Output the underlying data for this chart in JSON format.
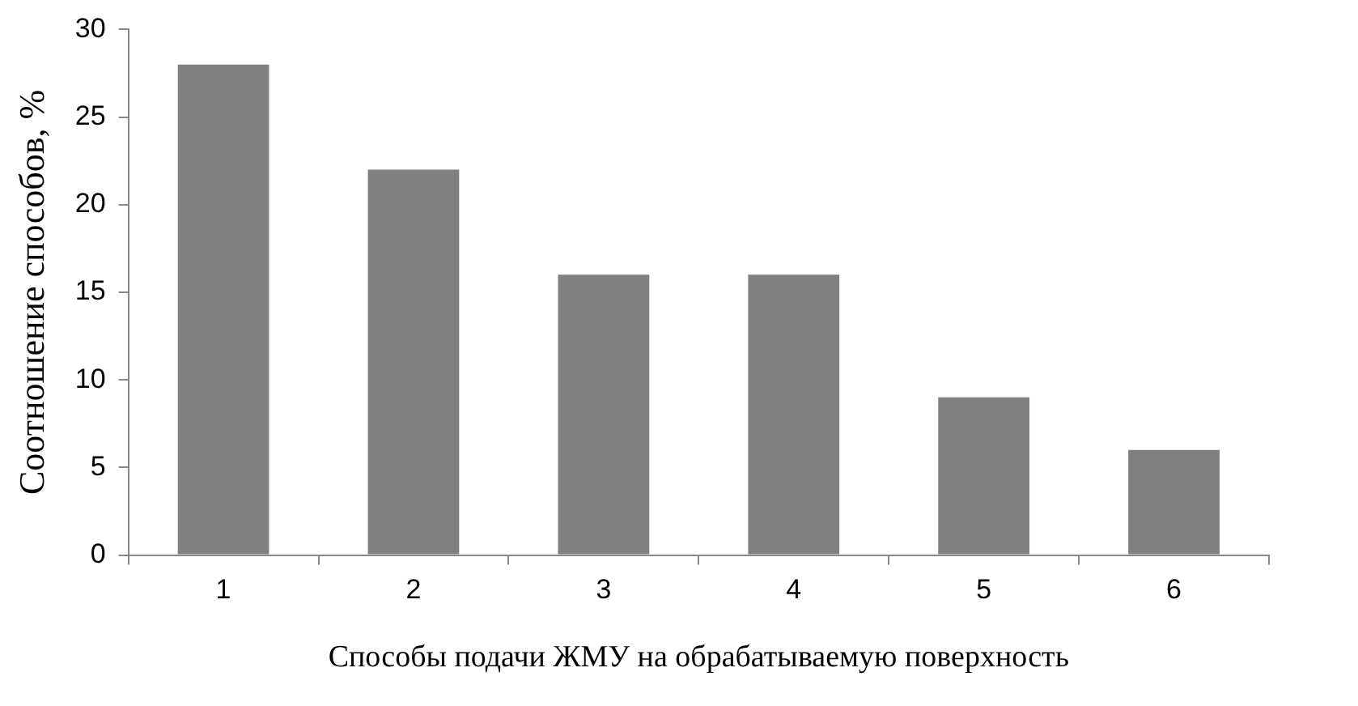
{
  "chart_data": {
    "type": "bar",
    "xlabel": "Способы подачи ЖМУ на обрабатываемую поверхность",
    "ylabel": "Соотношение способов, %",
    "categories": [
      "1",
      "2",
      "3",
      "4",
      "5",
      "6"
    ],
    "values": [
      28,
      22,
      16,
      16,
      9,
      6
    ],
    "color": "#808080",
    "ylim": [
      0,
      30
    ],
    "yticks": [
      0,
      5,
      10,
      15,
      20,
      25,
      30
    ],
    "grid": false,
    "legend": false
  }
}
